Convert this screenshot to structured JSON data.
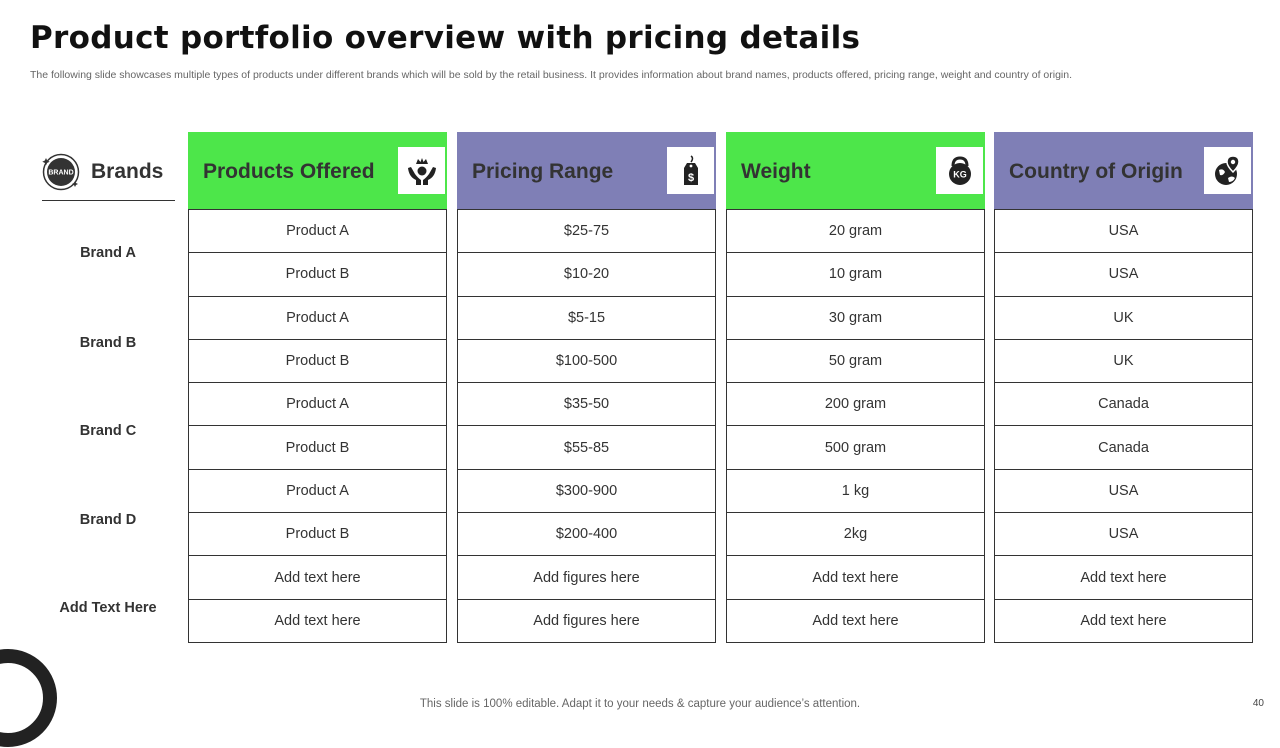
{
  "title": "Product portfolio overview with pricing details",
  "subtitle": "The following slide showcases multiple types of products under different brands which will be sold by the retail business. It provides information about brand names, products offered, pricing range, weight and country of origin.",
  "brands_header": {
    "label": "Brands",
    "badge_text": "BRAND",
    "icon": "brand-badge-icon"
  },
  "brands": [
    "Brand A",
    "Brand B",
    "Brand C",
    "Brand D",
    "Add  Text Here"
  ],
  "columns": [
    {
      "label": "Products Offered",
      "icon": "hands-crown-icon",
      "color": "#4de64a",
      "cells": [
        "Product A",
        "Product B",
        "Product A",
        "Product B",
        "Product A",
        "Product B",
        "Product A",
        "Product B",
        "Add text here",
        "Add text here"
      ]
    },
    {
      "label": "Pricing Range",
      "icon": "price-tag-icon",
      "color": "#7f7fb6",
      "cells": [
        "$25-75",
        "$10-20",
        "$5-15",
        "$100-500",
        "$35-50",
        "$55-85",
        "$300-900",
        "$200-400",
        "Add figures here",
        "Add figures here"
      ]
    },
    {
      "label": "Weight",
      "icon": "kettlebell-kg-icon",
      "color": "#4de64a",
      "icon_text": "KG",
      "cells": [
        "20 gram",
        "10 gram",
        "30 gram",
        "50 gram",
        "200 gram",
        "500 gram",
        "1 kg",
        "2kg",
        "Add text here",
        "Add text here"
      ]
    },
    {
      "label": "Country of Origin",
      "icon": "globe-pin-icon",
      "color": "#7f7fb6",
      "cells": [
        "USA",
        "USA",
        "UK",
        "UK",
        "Canada",
        "Canada",
        "USA",
        "USA",
        "Add text here",
        "Add text here"
      ]
    }
  ],
  "footer": "This slide is 100% editable. Adapt it to your needs & capture your audience’s attention.",
  "page_number": "40"
}
